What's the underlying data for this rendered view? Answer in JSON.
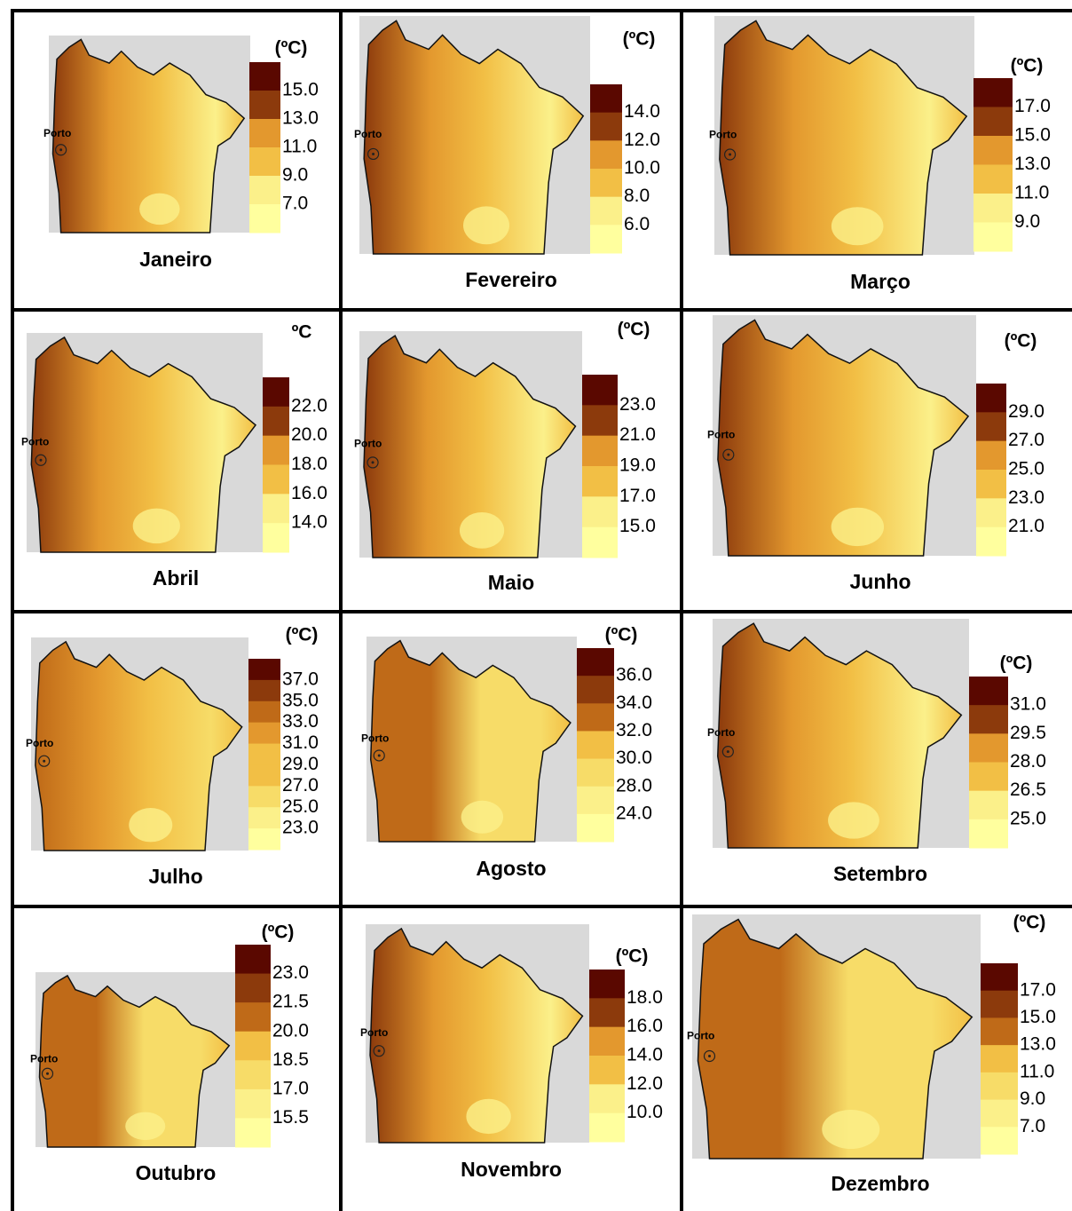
{
  "panels": [
    {
      "month": "Janeiro",
      "unit": "(ºC)",
      "porto": "Porto",
      "scale": [
        "15.0",
        "13.0",
        "11.0",
        "9.0",
        "7.0"
      ]
    },
    {
      "month": "Fevereiro",
      "unit": "(ºC)",
      "porto": "Porto",
      "scale": [
        "14.0",
        "12.0",
        "10.0",
        "8.0",
        "6.0"
      ]
    },
    {
      "month": "Março",
      "unit": "(ºC)",
      "porto": "Porto",
      "scale": [
        "17.0",
        "15.0",
        "13.0",
        "11.0",
        "9.0"
      ]
    },
    {
      "month": "Abril",
      "unit": "ºC",
      "porto": "Porto",
      "scale": [
        "22.0",
        "20.0",
        "18.0",
        "16.0",
        "14.0"
      ]
    },
    {
      "month": "Maio",
      "unit": "(ºC)",
      "porto": "Porto",
      "scale": [
        "23.0",
        "21.0",
        "19.0",
        "17.0",
        "15.0"
      ]
    },
    {
      "month": "Junho",
      "unit": "(ºC)",
      "porto": "Porto",
      "scale": [
        "29.0",
        "27.0",
        "25.0",
        "23.0",
        "21.0"
      ]
    },
    {
      "month": "Julho",
      "unit": "(ºC)",
      "porto": "Porto",
      "scale": [
        "37.0",
        "35.0",
        "33.0",
        "31.0",
        "29.0",
        "27.0",
        "25.0",
        "23.0"
      ]
    },
    {
      "month": "Agosto",
      "unit": "(ºC)",
      "porto": "Porto",
      "scale": [
        "36.0",
        "34.0",
        "32.0",
        "30.0",
        "28.0",
        "24.0"
      ]
    },
    {
      "month": "Setembro",
      "unit": "(ºC)",
      "porto": "Porto",
      "scale": [
        "31.0",
        "29.5",
        "28.0",
        "26.5",
        "25.0"
      ]
    },
    {
      "month": "Outubro",
      "unit": "(ºC)",
      "porto": "Porto",
      "scale": [
        "23.0",
        "21.5",
        "20.0",
        "18.5",
        "17.0",
        "15.5"
      ]
    },
    {
      "month": "Novembro",
      "unit": "(ºC)",
      "porto": "Porto",
      "scale": [
        "18.0",
        "16.0",
        "14.0",
        "12.0",
        "10.0"
      ]
    },
    {
      "month": "Dezembro",
      "unit": "(ºC)",
      "porto": "Porto",
      "scale": [
        "17.0",
        "15.0",
        "13.0",
        "11.0",
        "9.0",
        "7.0"
      ]
    }
  ]
}
